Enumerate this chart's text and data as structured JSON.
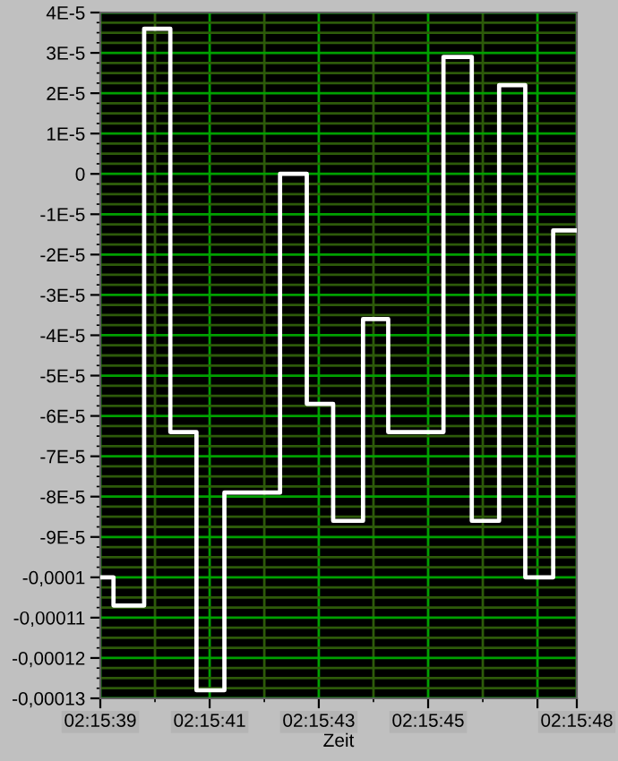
{
  "chart_data": {
    "type": "step",
    "xlabel": "Zeit",
    "x": [
      2.260833,
      2.2609,
      2.261056,
      2.261189,
      2.261322,
      2.261464,
      2.261747,
      2.261883,
      2.262017,
      2.262169,
      2.262297,
      2.262578,
      2.262722,
      2.262861,
      2.262994,
      2.263136,
      2.263256
    ],
    "series": [
      {
        "color": "#ffffff",
        "values": [
          -0.0001,
          -0.000107,
          3.6e-05,
          -6.4e-05,
          -0.000128,
          -7.9e-05,
          0.0,
          -5.7e-05,
          -8.6e-05,
          -3.6e-05,
          -6.4e-05,
          2.9e-05,
          -8.6e-05,
          2.2e-05,
          -0.0001,
          -1.4e-05,
          -1.4e-05
        ]
      }
    ],
    "xlim": [
      2.260833,
      2.263256
    ],
    "xticks": [
      {
        "value": 2.260833,
        "label": "02:15:39"
      },
      {
        "value": 2.261111,
        "label": null
      },
      {
        "value": 2.261389,
        "label": "02:15:41"
      },
      {
        "value": 2.261667,
        "label": null
      },
      {
        "value": 2.261944,
        "label": "02:15:43"
      },
      {
        "value": 2.262222,
        "label": null
      },
      {
        "value": 2.2625,
        "label": "02:15:45"
      },
      {
        "value": 2.262778,
        "label": null
      },
      {
        "value": 2.263056,
        "label": null
      },
      {
        "value": 2.263256,
        "label": "02:15:48"
      }
    ],
    "ylim": [
      -0.00013,
      4e-05
    ],
    "yticks": [
      {
        "value": 4e-05,
        "label": "4E-5"
      },
      {
        "value": 3.75e-05,
        "label": null
      },
      {
        "value": 3.5e-05,
        "label": null
      },
      {
        "value": 3.25e-05,
        "label": null
      },
      {
        "value": 3e-05,
        "label": "3E-5"
      },
      {
        "value": 2.75e-05,
        "label": null
      },
      {
        "value": 2.5e-05,
        "label": null
      },
      {
        "value": 2.25e-05,
        "label": null
      },
      {
        "value": 2e-05,
        "label": "2E-5"
      },
      {
        "value": 1.75e-05,
        "label": null
      },
      {
        "value": 1.5e-05,
        "label": null
      },
      {
        "value": 1.25e-05,
        "label": null
      },
      {
        "value": 1e-05,
        "label": "1E-5"
      },
      {
        "value": 7.5e-06,
        "label": null
      },
      {
        "value": 5e-06,
        "label": null
      },
      {
        "value": 2.5e-06,
        "label": null
      },
      {
        "value": 0,
        "label": "0"
      },
      {
        "value": -2.5e-06,
        "label": null
      },
      {
        "value": -5e-06,
        "label": null
      },
      {
        "value": -7.5e-06,
        "label": null
      },
      {
        "value": -1e-05,
        "label": "-1E-5"
      },
      {
        "value": -1.25e-05,
        "label": null
      },
      {
        "value": -1.5e-05,
        "label": null
      },
      {
        "value": -1.75e-05,
        "label": null
      },
      {
        "value": -2e-05,
        "label": "-2E-5"
      },
      {
        "value": -2.25e-05,
        "label": null
      },
      {
        "value": -2.5e-05,
        "label": null
      },
      {
        "value": -2.75e-05,
        "label": null
      },
      {
        "value": -3e-05,
        "label": "-3E-5"
      },
      {
        "value": -3.25e-05,
        "label": null
      },
      {
        "value": -3.5e-05,
        "label": null
      },
      {
        "value": -3.75e-05,
        "label": null
      },
      {
        "value": -4e-05,
        "label": "-4E-5"
      },
      {
        "value": -4.25e-05,
        "label": null
      },
      {
        "value": -4.5e-05,
        "label": null
      },
      {
        "value": -4.75e-05,
        "label": null
      },
      {
        "value": -5e-05,
        "label": "-5E-5"
      },
      {
        "value": -5.25e-05,
        "label": null
      },
      {
        "value": -5.5e-05,
        "label": null
      },
      {
        "value": -5.75e-05,
        "label": null
      },
      {
        "value": -6e-05,
        "label": "-6E-5"
      },
      {
        "value": -6.25e-05,
        "label": null
      },
      {
        "value": -6.5e-05,
        "label": null
      },
      {
        "value": -6.75e-05,
        "label": null
      },
      {
        "value": -7e-05,
        "label": "-7E-5"
      },
      {
        "value": -7.25e-05,
        "label": null
      },
      {
        "value": -7.5e-05,
        "label": null
      },
      {
        "value": -7.75e-05,
        "label": null
      },
      {
        "value": -8e-05,
        "label": "-8E-5"
      },
      {
        "value": -8.25e-05,
        "label": null
      },
      {
        "value": -8.5e-05,
        "label": null
      },
      {
        "value": -8.75e-05,
        "label": null
      },
      {
        "value": -9e-05,
        "label": "-9E-5"
      },
      {
        "value": -9.25e-05,
        "label": null
      },
      {
        "value": -9.5e-05,
        "label": null
      },
      {
        "value": -9.75e-05,
        "label": null
      },
      {
        "value": -0.0001,
        "label": "-0,0001"
      },
      {
        "value": -0.0001025,
        "label": null
      },
      {
        "value": -0.000105,
        "label": null
      },
      {
        "value": -0.0001075,
        "label": null
      },
      {
        "value": -0.00011,
        "label": "-0,00011"
      },
      {
        "value": -0.0001125,
        "label": null
      },
      {
        "value": -0.000115,
        "label": null
      },
      {
        "value": -0.0001175,
        "label": null
      },
      {
        "value": -0.00012,
        "label": "-0,00012"
      },
      {
        "value": -0.0001225,
        "label": null
      },
      {
        "value": -0.000125,
        "label": null
      },
      {
        "value": -0.0001275,
        "label": null
      },
      {
        "value": -0.00013,
        "label": "-0,00013"
      }
    ],
    "grid": true,
    "marker": "none",
    "line_style": "solid"
  }
}
